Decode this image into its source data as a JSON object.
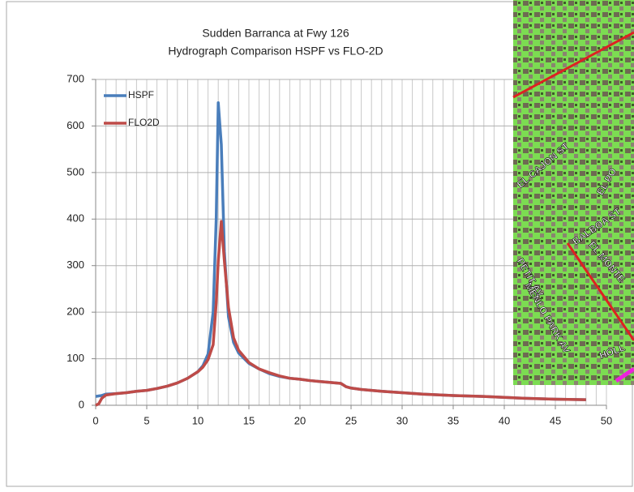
{
  "chart_data": {
    "type": "line",
    "title": [
      "Sudden Barranca at Fwy 126",
      "Hydrograph Comparison HSPF vs FLO-2D"
    ],
    "x": [
      0,
      0.3,
      0.6,
      1,
      2,
      3,
      4,
      5,
      6,
      7,
      8,
      9,
      10,
      10.5,
      11,
      11.5,
      11.8,
      12,
      12.3,
      12.6,
      13,
      13.5,
      14,
      15,
      16,
      17,
      18,
      19,
      20,
      21,
      22,
      23,
      24,
      24.5,
      25,
      26,
      28,
      30,
      32,
      35,
      38,
      40,
      42,
      45,
      48
    ],
    "series": [
      {
        "name": "HSPF",
        "color": "#4a7ebb",
        "values": [
          19,
          20,
          21,
          24,
          25,
          27,
          30,
          32,
          36,
          41,
          48,
          58,
          72,
          85,
          110,
          200,
          400,
          650,
          560,
          330,
          190,
          135,
          112,
          90,
          78,
          68,
          62,
          58,
          56,
          53,
          51,
          49,
          47,
          40,
          37,
          34,
          30,
          27,
          24,
          21,
          19,
          17,
          15,
          13,
          12
        ]
      },
      {
        "name": "FLO2D",
        "color": "#be4b48",
        "values": [
          0,
          3,
          15,
          22,
          25,
          27,
          30,
          32,
          36,
          41,
          48,
          58,
          72,
          82,
          98,
          130,
          220,
          310,
          395,
          310,
          210,
          145,
          118,
          92,
          78,
          70,
          63,
          58,
          56,
          53,
          51,
          49,
          47,
          40,
          37,
          34,
          30,
          27,
          24,
          21,
          19,
          17,
          15,
          13,
          12
        ]
      }
    ],
    "xlim": [
      0,
      50
    ],
    "xticks": [
      0,
      5,
      10,
      15,
      20,
      25,
      30,
      35,
      40,
      45,
      50
    ],
    "ylim": [
      0,
      700
    ],
    "yticks": [
      0,
      100,
      200,
      300,
      400,
      500,
      600,
      700
    ],
    "grid": true,
    "minor_grid_step": 1,
    "legend": "top-left"
  },
  "map": {
    "labels": [
      "EL CAJON ST",
      "BALBOA ST",
      "EL MONTE",
      "PETIT AV",
      "MENLO PARK AV",
      "EL PO",
      "HOLL"
    ]
  }
}
